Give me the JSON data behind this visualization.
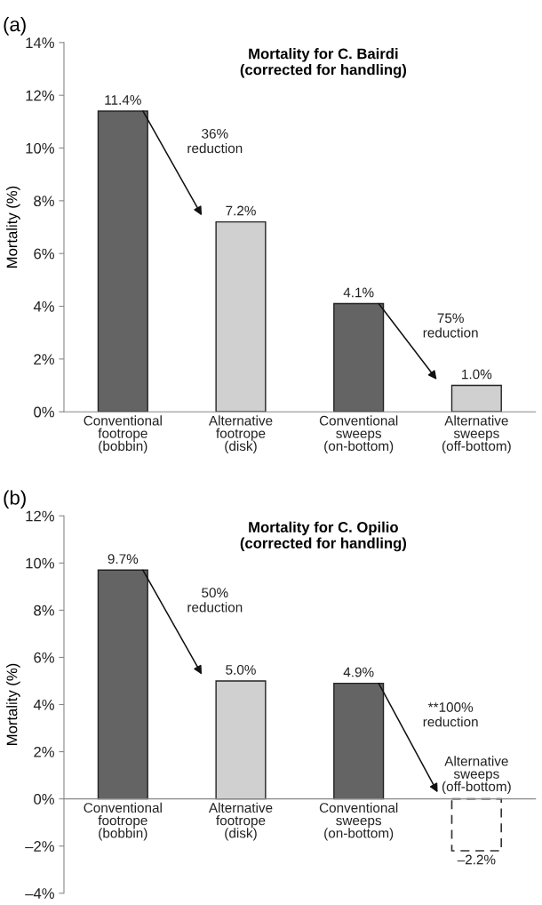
{
  "chart_data": [
    {
      "type": "bar",
      "title": "Mortality for C. Bairdi\n(corrected for handling)",
      "ylabel": "Mortality (%)",
      "categories": [
        "Conventional\nfootrope\n(bobbin)",
        "Alternative\nfootrope\n(disk)",
        "Conventional\nsweeps\n(on-bottom)",
        "Alternative\nsweeps\n(off-bottom)"
      ],
      "series": [
        {
          "values": [
            11.4,
            7.2,
            4.1,
            1.0
          ],
          "colors": [
            "#646464",
            "#d0d0d0",
            "#646464",
            "#d0d0d0"
          ],
          "value_labels": [
            "11.4%",
            "7.2%",
            "4.1%",
            "1.0%"
          ]
        }
      ],
      "ylim": [
        0,
        14
      ],
      "yticks": [
        {
          "value": 0,
          "label": "0%"
        },
        {
          "value": 2,
          "label": "2%"
        },
        {
          "value": 4,
          "label": "4%"
        },
        {
          "value": 6,
          "label": "6%"
        },
        {
          "value": 8,
          "label": "8%"
        },
        {
          "value": 10,
          "label": "10%"
        },
        {
          "value": 12,
          "label": "12%"
        },
        {
          "value": 14,
          "label": "14%"
        }
      ],
      "annotations": [
        "(a)",
        "36%\nreduction",
        "75%\nreduction"
      ],
      "grid": false,
      "legend": false
    },
    {
      "type": "bar",
      "title": "Mortality for C. Opilio\n(corrected for handling)",
      "ylabel": "Mortality (%)",
      "categories": [
        "Conventional\nfootrope\n(bobbin)",
        "Alternative\nfootrope\n(disk)",
        "Conventional\nsweeps\n(on-bottom)",
        "Alternative\nsweeps\n(off-bottom)"
      ],
      "series": [
        {
          "values": [
            9.7,
            5.0,
            4.9,
            null
          ],
          "colors": [
            "#646464",
            "#d0d0d0",
            "#646464",
            "#d0d0d0"
          ],
          "value_labels": [
            "9.7%",
            "5.0%",
            "4.9%",
            null
          ]
        },
        {
          "values": [
            null,
            null,
            null,
            -2.2
          ],
          "color": "#333333",
          "line_style": "dashed",
          "value_labels": [
            null,
            null,
            null,
            "–2.2%"
          ]
        }
      ],
      "ylim": [
        -4,
        12
      ],
      "yticks": [
        {
          "value": -4,
          "label": "–4%"
        },
        {
          "value": -2,
          "label": "–2%"
        },
        {
          "value": 0,
          "label": "0%"
        },
        {
          "value": 2,
          "label": "2%"
        },
        {
          "value": 4,
          "label": "4%"
        },
        {
          "value": 6,
          "label": "6%"
        },
        {
          "value": 8,
          "label": "8%"
        },
        {
          "value": 10,
          "label": "10%"
        },
        {
          "value": 12,
          "label": "12%"
        }
      ],
      "annotations": [
        "(b)",
        "50%\nreduction",
        "**100%\nreduction"
      ],
      "grid": false,
      "legend": false
    }
  ]
}
